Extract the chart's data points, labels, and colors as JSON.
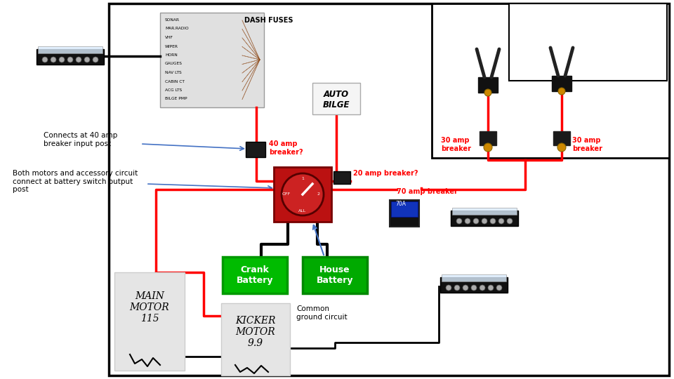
{
  "bg_color": "#ffffff",
  "border_color": "#000000",
  "red_wire": "#ff0000",
  "black_wire": "#000000",
  "blue_wire": "#4472c4",
  "green_box_color": "#00aa00",
  "labels": {
    "connects_40amp": "Connects at 40 amp\nbreaker input post",
    "both_motors": "Both motors and accessory circuit\nconnect at battery switch output\npost",
    "40amp_breaker": "40 amp\nbreaker?",
    "20amp_breaker": "20 amp breaker?",
    "30amp_left": "30 amp\nbreaker",
    "30amp_right": "30 amp\nbreaker",
    "70amp_breaker": "70 amp breaker",
    "auto_bilge": "AUTO\nBILGE",
    "crank_battery": "Crank\nBattery",
    "house_battery": "House\nBattery",
    "common_ground": "Common\nground circuit",
    "main_motor": "MAIN\nMOTOR\n115",
    "kicker_motor": "KICKER\nMOTOR\n9.9"
  }
}
